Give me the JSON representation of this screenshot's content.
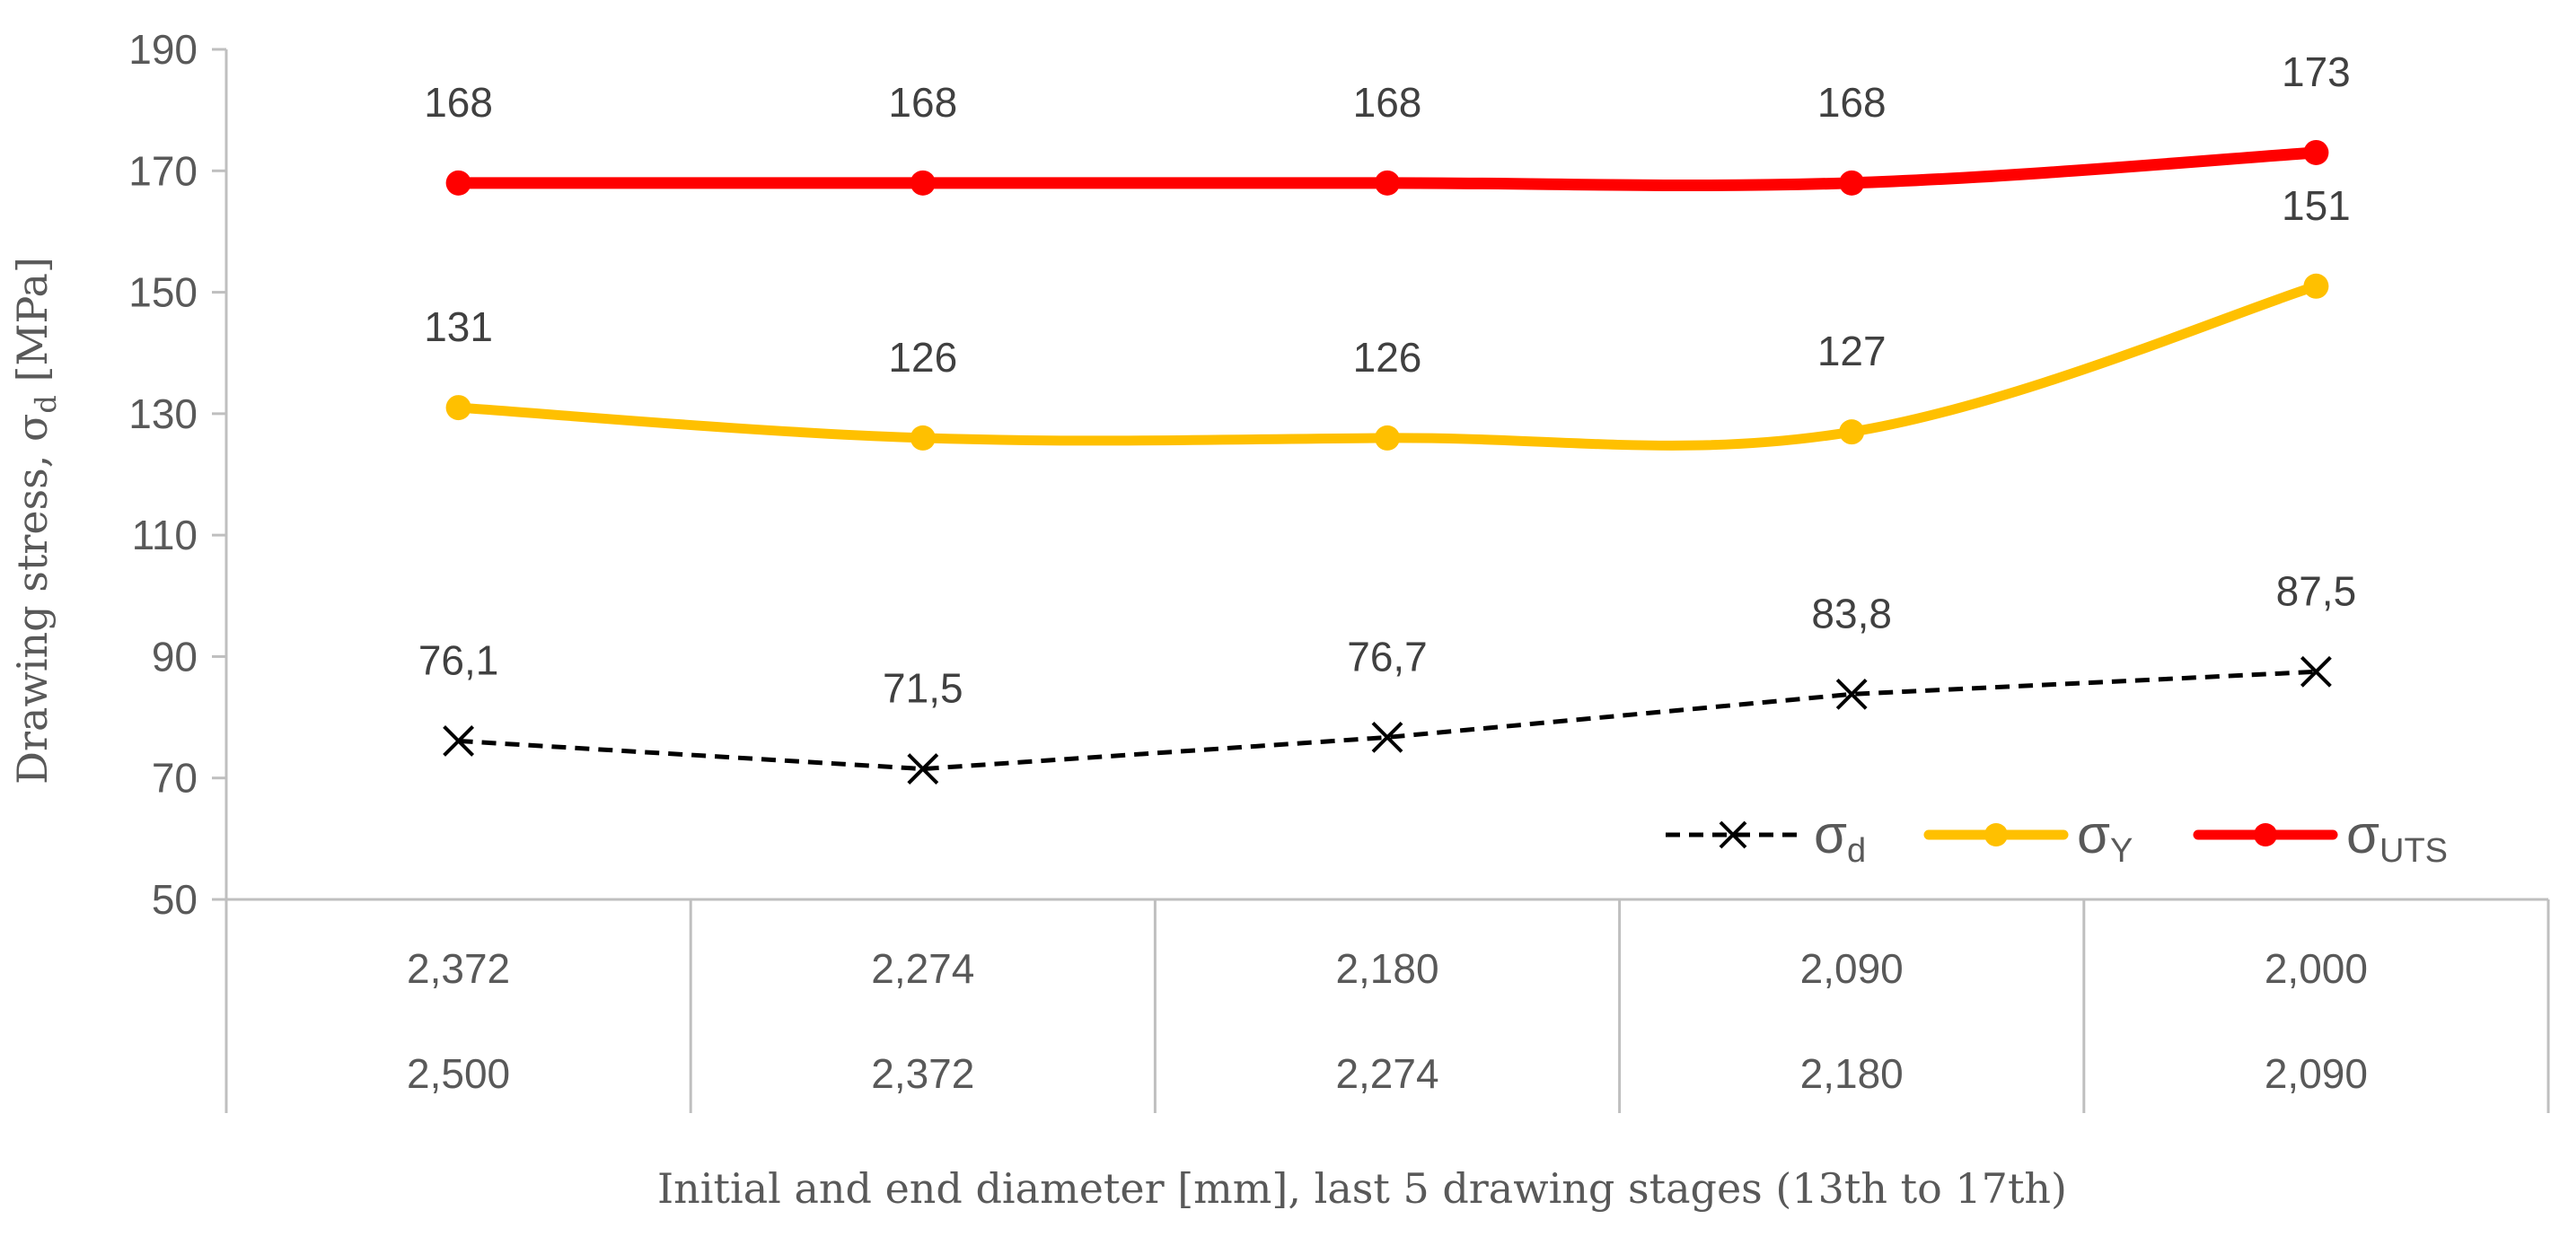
{
  "chart_data": {
    "type": "line",
    "xlabel": "Initial and end diameter [mm], last 5 drawing stages (13th to 17th)",
    "ylabel": {
      "prefix": "Drawing stress, σ",
      "subscript": "d",
      "suffix": " [MPa]"
    },
    "ylim": [
      50,
      190
    ],
    "yticks": [
      "50",
      "70",
      "90",
      "110",
      "130",
      "150",
      "170",
      "190"
    ],
    "categories": [
      {
        "end": "2,372",
        "initial": "2,500"
      },
      {
        "end": "2,274",
        "initial": "2,372"
      },
      {
        "end": "2,180",
        "initial": "2,274"
      },
      {
        "end": "2,090",
        "initial": "2,180"
      },
      {
        "end": "2,000",
        "initial": "2,090"
      }
    ],
    "grid": false,
    "legend_position": "bottom-right",
    "series": [
      {
        "name": "σ",
        "name_sub": "d",
        "color": "#000000",
        "style": "dashed",
        "marker": "x",
        "values": [
          76.1,
          71.5,
          76.7,
          83.8,
          87.5
        ],
        "labels": [
          "76,1",
          "71,5",
          "76,7",
          "83,8",
          "87,5"
        ]
      },
      {
        "name": "σ",
        "name_sub": "Y",
        "color": "#FFC000",
        "style": "solid",
        "marker": "circle",
        "values": [
          131,
          126,
          126,
          127,
          151
        ],
        "labels": [
          "131",
          "126",
          "126",
          "127",
          "151"
        ]
      },
      {
        "name": "σ",
        "name_sub": "UTS",
        "color": "#FF0000",
        "style": "solid",
        "marker": "circle",
        "values": [
          168,
          168,
          168,
          168,
          173
        ],
        "labels": [
          "168",
          "168",
          "168",
          "168",
          "173"
        ]
      }
    ]
  }
}
